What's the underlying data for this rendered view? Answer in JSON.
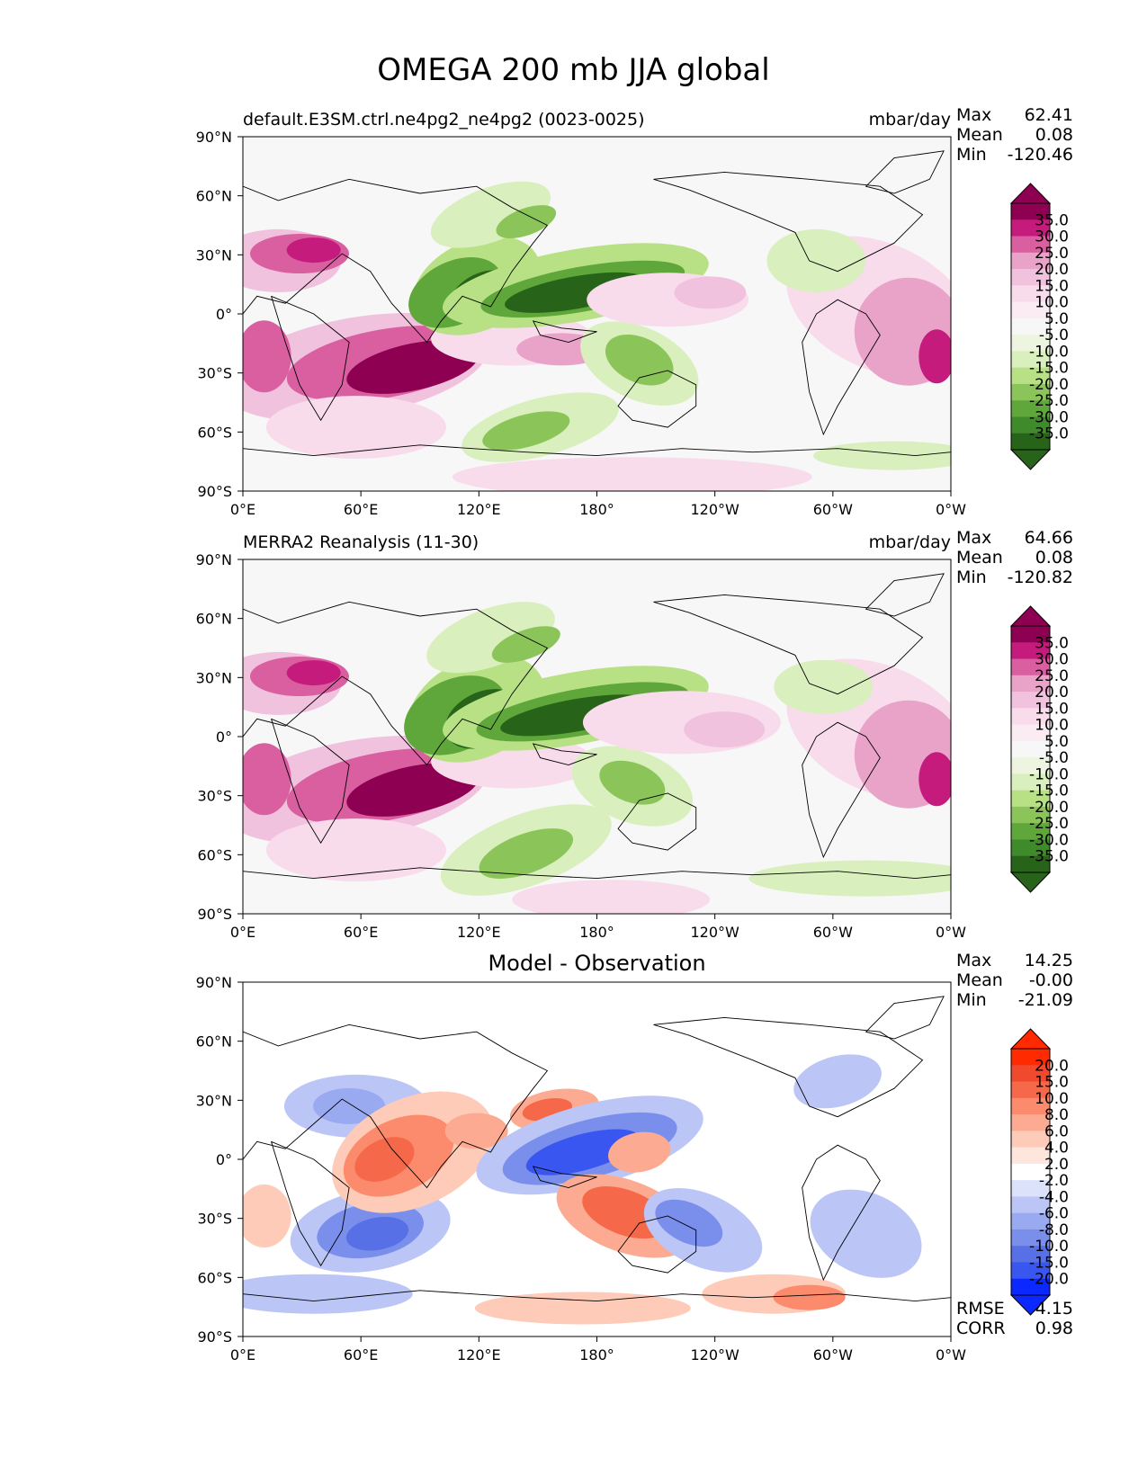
{
  "figure_title": "OMEGA 200 mb JJA global",
  "chart_data": [
    {
      "type": "heatmap",
      "title_left": "default.E3SM.ctrl.ne4pg2_ne4pg2 (0023-0025)",
      "title_right": "mbar/day",
      "title_center": "",
      "xticks": [
        "0°E",
        "60°E",
        "120°E",
        "180°",
        "120°W",
        "60°W",
        "0°W"
      ],
      "yticks": [
        "90°N",
        "60°N",
        "30°N",
        "0°",
        "30°S",
        "60°S",
        "90°S"
      ],
      "stats": [
        {
          "label": "Max",
          "value": "62.41"
        },
        {
          "label": "Mean",
          "value": "0.08"
        },
        {
          "label": "Min",
          "value": "-120.46"
        }
      ],
      "colorbar_labels": [
        "35.0",
        "30.0",
        "25.0",
        "20.0",
        "15.0",
        "10.0",
        "5.0",
        "-5.0",
        "-10.0",
        "-15.0",
        "-20.0",
        "-25.0",
        "-30.0",
        "-35.0"
      ],
      "colorbar_colors": [
        "#8e0152",
        "#c51b7d",
        "#d95fa1",
        "#e9a3c9",
        "#f1c2de",
        "#f9dcec",
        "#fbecf4",
        "#f7f7f7",
        "#edf5e0",
        "#d9efbd",
        "#b8e186",
        "#8bc55a",
        "#5fa73a",
        "#3f8a2a",
        "#276419"
      ],
      "extend_colors": {
        "top": "#8e0152",
        "bottom": "#276419"
      },
      "footer_stats": []
    },
    {
      "type": "heatmap",
      "title_left": "MERRA2 Reanalysis (11-30)",
      "title_right": "mbar/day",
      "title_center": "",
      "xticks": [
        "0°E",
        "60°E",
        "120°E",
        "180°",
        "120°W",
        "60°W",
        "0°W"
      ],
      "yticks": [
        "90°N",
        "60°N",
        "30°N",
        "0°",
        "30°S",
        "60°S",
        "90°S"
      ],
      "stats": [
        {
          "label": "Max",
          "value": "64.66"
        },
        {
          "label": "Mean",
          "value": "0.08"
        },
        {
          "label": "Min",
          "value": "-120.82"
        }
      ],
      "colorbar_labels": [
        "35.0",
        "30.0",
        "25.0",
        "20.0",
        "15.0",
        "10.0",
        "5.0",
        "-5.0",
        "-10.0",
        "-15.0",
        "-20.0",
        "-25.0",
        "-30.0",
        "-35.0"
      ],
      "colorbar_colors": [
        "#8e0152",
        "#c51b7d",
        "#d95fa1",
        "#e9a3c9",
        "#f1c2de",
        "#f9dcec",
        "#fbecf4",
        "#f7f7f7",
        "#edf5e0",
        "#d9efbd",
        "#b8e186",
        "#8bc55a",
        "#5fa73a",
        "#3f8a2a",
        "#276419"
      ],
      "extend_colors": {
        "top": "#8e0152",
        "bottom": "#276419"
      },
      "footer_stats": []
    },
    {
      "type": "heatmap",
      "title_left": "",
      "title_right": "",
      "title_center": "Model - Observation",
      "xticks": [
        "0°E",
        "60°E",
        "120°E",
        "180°",
        "120°W",
        "60°W",
        "0°W"
      ],
      "yticks": [
        "90°N",
        "60°N",
        "30°N",
        "0°",
        "30°S",
        "60°S",
        "90°S"
      ],
      "stats": [
        {
          "label": "Max",
          "value": "14.25"
        },
        {
          "label": "Mean",
          "value": "-0.00"
        },
        {
          "label": "Min",
          "value": "-21.09"
        }
      ],
      "colorbar_labels": [
        "20.0",
        "15.0",
        "10.0",
        "8.0",
        "6.0",
        "4.0",
        "2.0",
        "-2.0",
        "-4.0",
        "-6.0",
        "-8.0",
        "-10.0",
        "-15.0",
        "-20.0"
      ],
      "colorbar_colors": [
        "#ff2a00",
        "#f0492d",
        "#f5694a",
        "#fb8b6c",
        "#fcab92",
        "#fdcbb8",
        "#fee6dc",
        "#ffffff",
        "#dde2fb",
        "#bcc6f6",
        "#9aaaf1",
        "#7a8eec",
        "#5770e6",
        "#3a56f0",
        "#0a28ff"
      ],
      "extend_colors": {
        "top": "#ff2a00",
        "bottom": "#0a28ff"
      },
      "footer_stats": [
        {
          "label": "RMSE",
          "value": "4.15"
        },
        {
          "label": "CORR",
          "value": "0.98"
        }
      ]
    }
  ]
}
